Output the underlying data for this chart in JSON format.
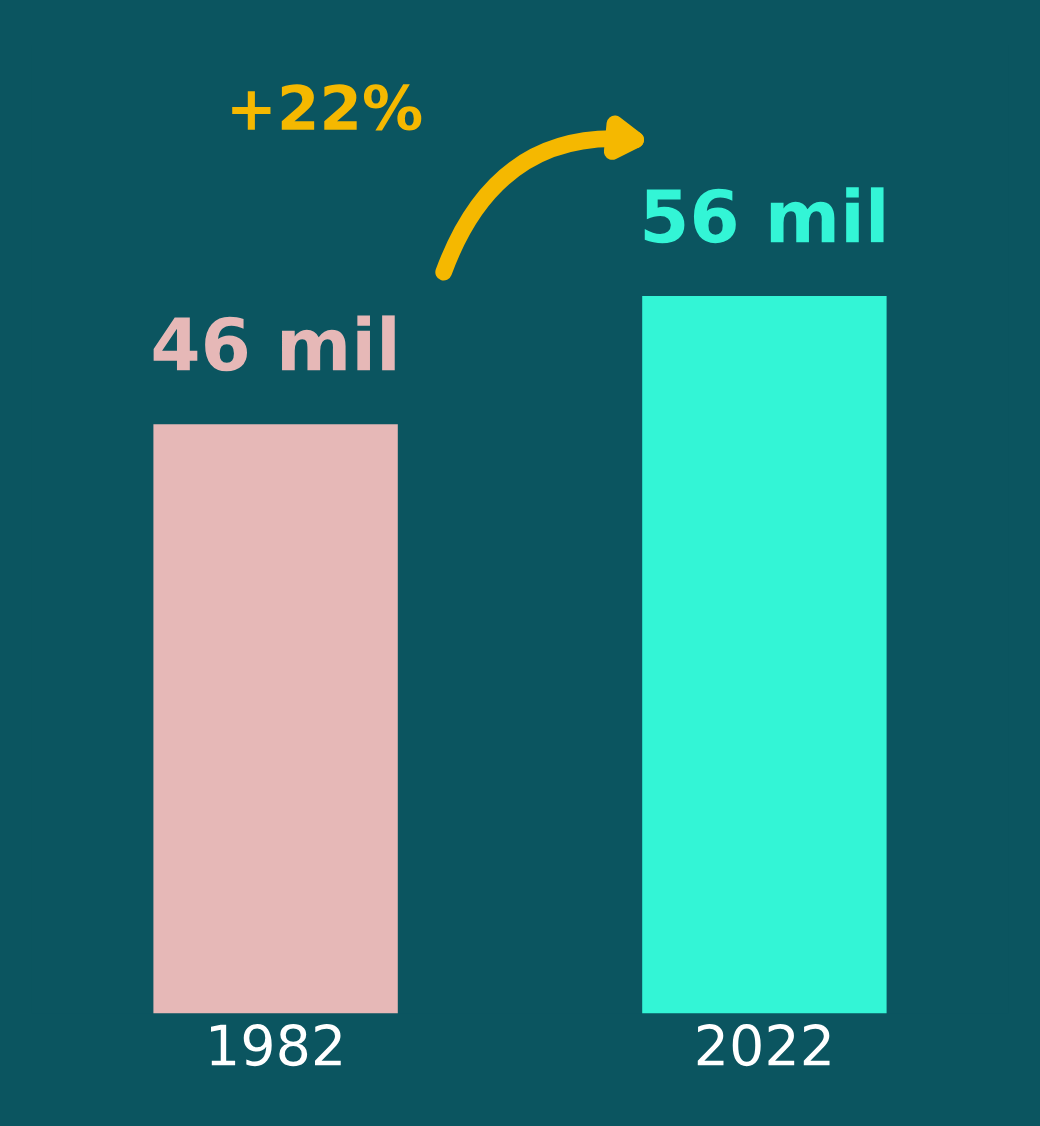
{
  "chart_data": {
    "type": "bar",
    "categories": [
      "1982",
      "2022"
    ],
    "values": [
      46,
      56
    ],
    "colors": [
      "#e6b8b7",
      "#33f5d6"
    ],
    "value_labels": [
      "46 mil",
      "56 mil"
    ],
    "annotations": [
      "+22%"
    ],
    "grid": false,
    "legend": false
  }
}
